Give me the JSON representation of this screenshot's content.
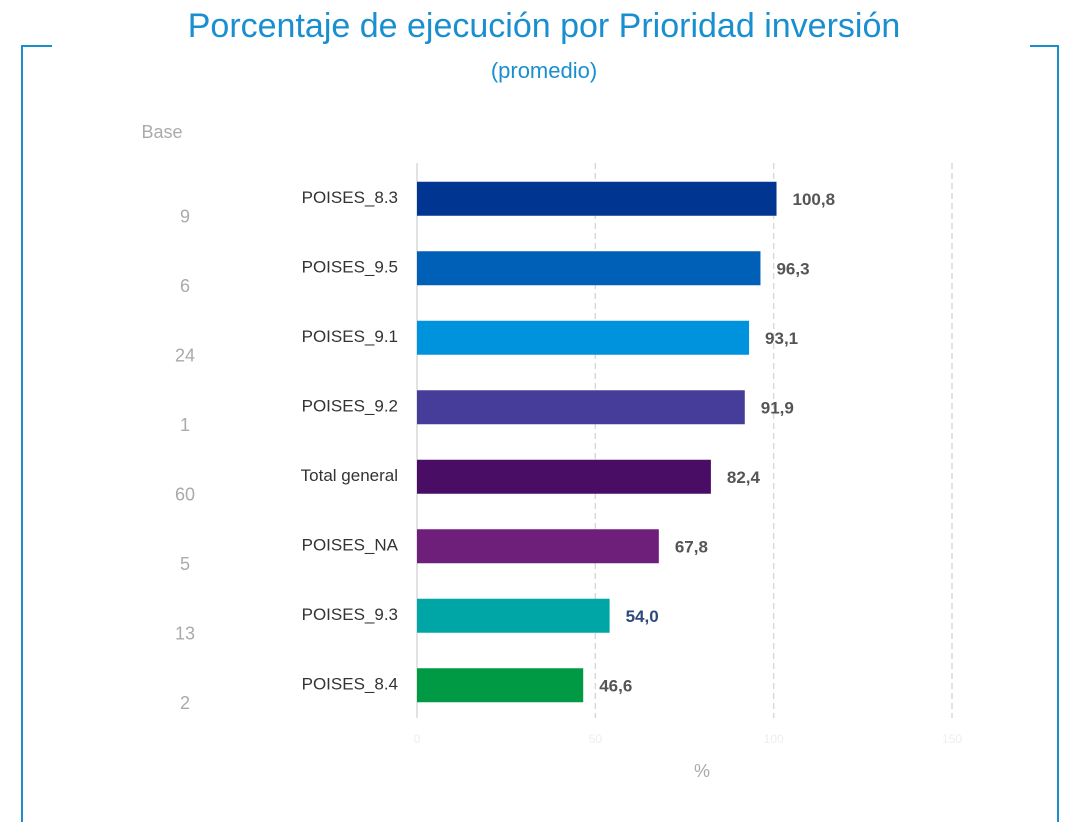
{
  "chart_data": {
    "type": "bar",
    "orientation": "horizontal",
    "title": "Porcentaje de ejecución por Prioridad inversión",
    "subtitle": "(promedio)",
    "xlabel": "%",
    "categories": [
      "POISES_8.3",
      "POISES_9.5",
      "POISES_9.1",
      "POISES_9.2",
      "Total general",
      "POISES_NA",
      "POISES_9.3",
      "POISES_8.4"
    ],
    "values": [
      100.8,
      96.3,
      93.1,
      91.9,
      82.4,
      67.8,
      54.0,
      46.6
    ],
    "value_labels": [
      "100,8",
      "96,3",
      "93,1",
      "91,9",
      "82,4",
      "67,8",
      "54,0",
      "46,6"
    ],
    "colors": [
      "#003591",
      "#0060b8",
      "#0093dd",
      "#463c9a",
      "#4a0d66",
      "#6e1f7a",
      "#00a6a6",
      "#009a44"
    ],
    "value_label_colors": [
      "#555555",
      "#555555",
      "#555555",
      "#555555",
      "#555555",
      "#555555",
      "#2e4a7a",
      "#555555"
    ],
    "base": {
      "label": "Base",
      "values": [
        9,
        6,
        24,
        1,
        60,
        5,
        13,
        2
      ]
    },
    "xlim": [
      0,
      150
    ],
    "xticks": [
      0,
      50,
      100,
      150
    ],
    "grid": true
  }
}
